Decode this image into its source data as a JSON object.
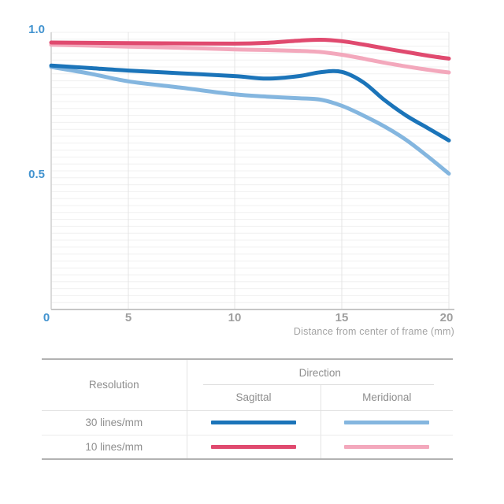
{
  "chart": {
    "y_ticks": [
      "1.0",
      "0.5"
    ],
    "x_ticks": [
      "0",
      "5",
      "10",
      "15",
      "20"
    ],
    "x_axis_title": "Distance from center of frame (mm)",
    "colors": {
      "tick_highlight": "#4293cf",
      "tick_gray": "#9e9e9e",
      "grid_horizontal": "#f0f0f0",
      "grid_vertical": "#e4e4e4",
      "axis": "#c6c6c6"
    }
  },
  "chart_data": {
    "type": "line",
    "title": "",
    "xlabel": "Distance from center of frame (mm)",
    "ylabel": "",
    "xlim": [
      0,
      20
    ],
    "ylim": [
      0,
      1.0
    ],
    "x_tick_values": [
      0,
      5,
      10,
      15,
      20
    ],
    "y_tick_values": [
      1.0,
      0.5
    ],
    "grid": true,
    "legend_position": "bottom-table",
    "x": [
      0,
      2.5,
      5,
      7.5,
      10,
      11.5,
      13,
      14,
      15,
      16,
      17,
      18,
      19,
      20
    ],
    "series": [
      {
        "name": "30 lines/mm Sagittal",
        "color": "#1b74b9",
        "values": [
          0.88,
          0.871,
          0.862,
          0.852,
          0.842,
          0.833,
          0.842,
          0.856,
          0.857,
          0.82,
          0.755,
          0.7,
          0.655,
          0.61
        ]
      },
      {
        "name": "30 lines/mm Meridional",
        "color": "#84b6df",
        "values": [
          0.875,
          0.851,
          0.823,
          0.8,
          0.776,
          0.768,
          0.762,
          0.757,
          0.735,
          0.7,
          0.66,
          0.612,
          0.553,
          0.49
        ]
      },
      {
        "name": "10 lines/mm Sagittal",
        "color": "#e04a6f",
        "values": [
          0.963,
          0.962,
          0.961,
          0.96,
          0.959,
          0.962,
          0.97,
          0.973,
          0.968,
          0.956,
          0.942,
          0.929,
          0.916,
          0.905
        ]
      },
      {
        "name": "10 lines/mm Meridional",
        "color": "#f3a8bc",
        "values": [
          0.955,
          0.952,
          0.948,
          0.944,
          0.938,
          0.936,
          0.933,
          0.929,
          0.919,
          0.905,
          0.89,
          0.877,
          0.865,
          0.855
        ]
      }
    ]
  },
  "legend_table": {
    "resolution_header": "Resolution",
    "direction_header": "Direction",
    "columns": [
      "Sagittal",
      "Meridional"
    ],
    "rows": [
      {
        "label": "30 lines/mm",
        "sagittal_color": "#1b74b9",
        "meridional_color": "#84b6df"
      },
      {
        "label": "10 lines/mm",
        "sagittal_color": "#e04a6f",
        "meridional_color": "#f3a8bc"
      }
    ]
  }
}
